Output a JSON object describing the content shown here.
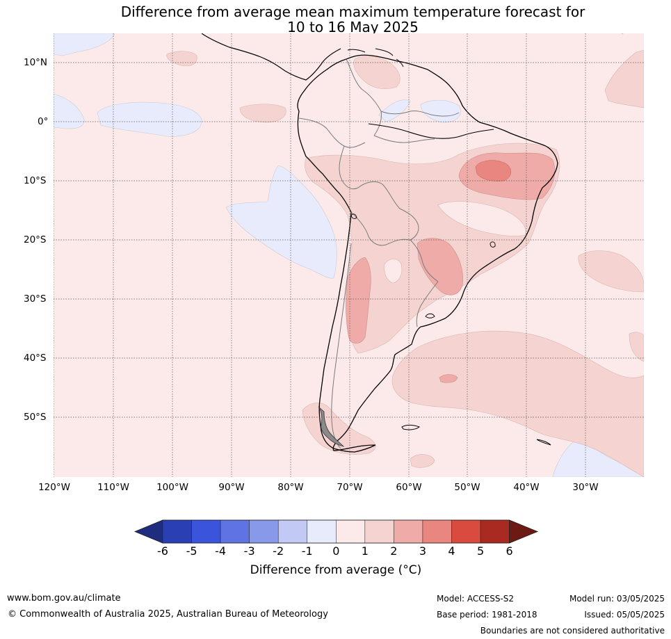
{
  "title": {
    "line1": "Difference from average mean maximum temperature forecast for",
    "line2": "10 to 16 May 2025"
  },
  "map": {
    "region": "South America",
    "lat_labels": [
      "10°N",
      "0°",
      "10°S",
      "20°S",
      "30°S",
      "40°S",
      "50°S"
    ],
    "lon_labels": [
      "120°W",
      "110°W",
      "100°W",
      "90°W",
      "80°W",
      "70°W",
      "60°W",
      "50°W",
      "40°W",
      "30°W"
    ],
    "background_anomaly_band": "0 to 1",
    "notable_anomalies": [
      {
        "area": "north-east Brazil",
        "band": "3 to 4"
      },
      {
        "area": "southern Brazil / Paraguay",
        "band": "2 to 3"
      },
      {
        "area": "western Argentina",
        "band": "2 to 3"
      },
      {
        "area": "eastern Pacific",
        "band": "-1 to 0"
      }
    ]
  },
  "colorbar": {
    "ticks": [
      "-6",
      "-5",
      "-4",
      "-3",
      "-2",
      "-1",
      "0",
      "1",
      "2",
      "3",
      "4",
      "5",
      "6"
    ],
    "colors": [
      "#1f2d80",
      "#2b3fb4",
      "#3a55dc",
      "#5f74e2",
      "#8899ea",
      "#c2c9f4",
      "#e8ebfb",
      "#fbeae9",
      "#f5d3d1",
      "#eeaba8",
      "#e8867f",
      "#d94b3f",
      "#a82a20",
      "#6e1a14"
    ],
    "label": "Difference from average (°C)"
  },
  "footer": {
    "website": "www.bom.gov.au/climate",
    "copyright": "© Commonwealth of Australia 2025, Australian Bureau of Meteorology",
    "model": "Model: ACCESS-S2",
    "base_period": "Base period: 1981-2018",
    "model_run": "Model run: 03/05/2025",
    "issued": "Issued: 05/05/2025",
    "disclaimer": "Boundaries are not considered authoritative"
  }
}
